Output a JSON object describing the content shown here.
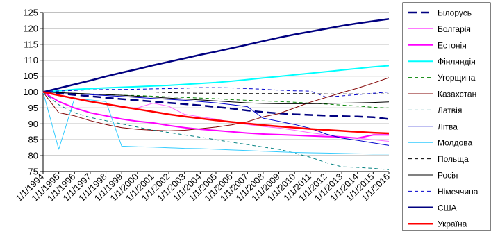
{
  "chart_data": {
    "type": "line",
    "title": "",
    "xlabel": "",
    "ylabel": "",
    "ylim": [
      75,
      125
    ],
    "yticks": [
      75,
      80,
      85,
      90,
      95,
      100,
      105,
      110,
      115,
      120,
      125
    ],
    "grid": "horizontal",
    "legend_position": "right",
    "x": [
      "1/1/1994",
      "1/1/1995",
      "1/1/1996",
      "1/1/1997",
      "1/1/1998",
      "1/1/1999",
      "1/1/2000",
      "1/1/2001",
      "1/1/2002",
      "1/1/2003",
      "1/1/2004",
      "1/1/2005",
      "1/1/2006",
      "1/1/2007",
      "1/1/2008",
      "1/1/2009",
      "1/1/2010",
      "1/1/2011",
      "1/1/2012",
      "1/1/2013",
      "1/1/2014",
      "1/1/2015",
      "1/1/2016"
    ],
    "series": [
      {
        "name": "Білорусь",
        "color": "#000080",
        "dash": "long-dash",
        "width": 2.5,
        "values": [
          100,
          99.6,
          99.1,
          98.7,
          98.2,
          97.8,
          97.4,
          97.0,
          96.6,
          96.2,
          95.8,
          95.3,
          94.8,
          94.2,
          93.7,
          93.3,
          93.0,
          92.8,
          92.6,
          92.4,
          92.3,
          92.1,
          91.5
        ]
      },
      {
        "name": "Болгарія",
        "color": "#ff66ff",
        "dash": "solid",
        "width": 1,
        "values": [
          100,
          98.9,
          97.9,
          97.0,
          96.1,
          95.2,
          95.0,
          96.5,
          95.5,
          93.0,
          92.2,
          91.5,
          90.5,
          89.8,
          89.2,
          88.7,
          88.0,
          87.2,
          86.5,
          86.0,
          85.5,
          85.0,
          84.5
        ]
      },
      {
        "name": "Естонія",
        "color": "#ff00ff",
        "dash": "solid",
        "width": 2,
        "values": [
          100,
          97.0,
          95.0,
          93.5,
          92.5,
          91.5,
          90.8,
          90.3,
          89.5,
          88.8,
          88.3,
          87.9,
          87.5,
          87.1,
          86.8,
          86.6,
          86.4,
          86.2,
          86.0,
          85.9,
          85.5,
          86.5,
          86.5
        ]
      },
      {
        "name": "Фінляндія",
        "color": "#00ffff",
        "dash": "solid",
        "width": 2,
        "values": [
          100,
          100.4,
          100.8,
          101.1,
          101.3,
          101.5,
          101.7,
          101.9,
          102.1,
          102.4,
          102.7,
          103.0,
          103.4,
          103.9,
          104.4,
          104.9,
          105.4,
          105.9,
          106.4,
          106.9,
          107.4,
          107.9,
          108.3
        ]
      },
      {
        "name": "Угорщина",
        "color": "#008000",
        "dash": "dash",
        "width": 1,
        "values": [
          100,
          99.8,
          99.6,
          99.4,
          99.2,
          99.0,
          98.9,
          98.7,
          98.5,
          98.3,
          98.1,
          97.9,
          97.6,
          97.4,
          97.2,
          97.0,
          96.8,
          96.5,
          96.2,
          95.9,
          95.6,
          95.2,
          95.0
        ]
      },
      {
        "name": "Казахстан",
        "color": "#800000",
        "dash": "solid",
        "width": 1,
        "values": [
          100,
          93.5,
          92.5,
          91.0,
          89.8,
          88.8,
          88.3,
          88.0,
          87.8,
          88.0,
          88.5,
          89.0,
          89.7,
          90.7,
          92.2,
          93.2,
          95.0,
          96.8,
          98.3,
          99.8,
          101.2,
          102.8,
          104.5
        ]
      },
      {
        "name": "Латвія",
        "color": "#008080",
        "dash": "dash",
        "width": 1,
        "values": [
          100,
          96.0,
          93.5,
          92.0,
          91.0,
          90.0,
          89.0,
          88.0,
          87.3,
          86.5,
          85.8,
          85.0,
          84.2,
          83.5,
          82.7,
          82.0,
          80.8,
          79.5,
          77.8,
          76.5,
          76.3,
          76.0,
          75.6
        ]
      },
      {
        "name": "Літва",
        "color": "#0000cc",
        "dash": "solid",
        "width": 1,
        "values": [
          100,
          99.8,
          99.5,
          99.2,
          98.9,
          98.6,
          98.3,
          98.0,
          97.7,
          97.4,
          97.0,
          96.6,
          96.0,
          95.4,
          91.8,
          90.8,
          89.8,
          88.6,
          86.8,
          85.5,
          84.8,
          84.0,
          83.2
        ]
      },
      {
        "name": "Молдова",
        "color": "#33ccff",
        "dash": "solid",
        "width": 1,
        "values": [
          100,
          82.0,
          98.0,
          97.5,
          97.0,
          83.0,
          82.8,
          82.7,
          82.5,
          82.3,
          82.2,
          82.0,
          81.8,
          81.6,
          81.4,
          81.2,
          81.0,
          80.9,
          80.8,
          80.7,
          80.6,
          80.5,
          80.5
        ]
      },
      {
        "name": "Польща",
        "color": "#000000",
        "dash": "dash",
        "width": 1,
        "values": [
          100,
          100.0,
          100.0,
          100.0,
          100.0,
          100.0,
          100.0,
          100.0,
          99.8,
          99.7,
          99.6,
          99.6,
          99.5,
          99.5,
          99.5,
          99.5,
          99.5,
          99.5,
          99.4,
          99.4,
          99.4,
          99.4,
          99.4
        ]
      },
      {
        "name": "Росія",
        "color": "#000000",
        "dash": "solid",
        "width": 1,
        "values": [
          100,
          99.8,
          99.6,
          99.4,
          99.2,
          99.0,
          98.7,
          98.4,
          98.1,
          97.8,
          97.5,
          97.2,
          96.9,
          96.6,
          96.4,
          96.3,
          96.3,
          96.3,
          96.4,
          96.5,
          96.6,
          96.7,
          96.9
        ]
      },
      {
        "name": "Німеччина",
        "color": "#0000cc",
        "dash": "dash",
        "width": 1,
        "values": [
          100,
          100.3,
          100.5,
          100.7,
          100.8,
          100.8,
          100.9,
          101.0,
          101.1,
          101.2,
          101.4,
          101.4,
          101.3,
          101.1,
          100.9,
          100.6,
          100.4,
          100.3,
          98.4,
          98.8,
          99.2,
          99.6,
          100.0
        ]
      },
      {
        "name": "США",
        "color": "#000080",
        "dash": "solid",
        "width": 2.5,
        "values": [
          100,
          101.2,
          102.4,
          103.6,
          104.9,
          106.1,
          107.2,
          108.4,
          109.5,
          110.6,
          111.7,
          112.7,
          113.8,
          114.9,
          116.0,
          117.1,
          118.1,
          119.0,
          119.9,
          120.8,
          121.6,
          122.3,
          123.0
        ]
      },
      {
        "name": "Україна",
        "color": "#ff0000",
        "dash": "solid",
        "width": 2.5,
        "values": [
          100,
          99.0,
          98.0,
          97.0,
          96.2,
          95.4,
          94.6,
          93.8,
          93.0,
          92.3,
          91.7,
          91.1,
          90.6,
          90.1,
          89.6,
          89.2,
          88.8,
          88.4,
          88.1,
          87.8,
          87.5,
          87.2,
          87.0
        ]
      }
    ]
  }
}
